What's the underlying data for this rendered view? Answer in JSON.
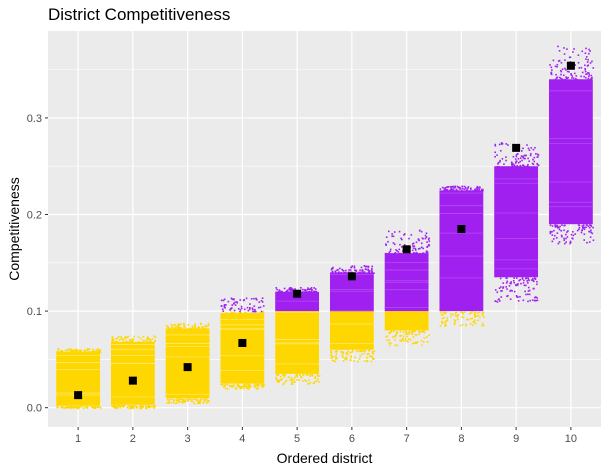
{
  "chart_data": {
    "type": "scatter",
    "title": "District Competitiveness",
    "xlabel": "Ordered district",
    "ylabel": "Competitiveness",
    "x_categories": [
      "1",
      "2",
      "3",
      "4",
      "5",
      "6",
      "7",
      "8",
      "9",
      "10"
    ],
    "ylim": [
      -0.02,
      0.39
    ],
    "y_ticks": [
      0.0,
      0.1,
      0.2,
      0.3
    ],
    "y_tick_labels": [
      "0.0",
      "0.1",
      "0.2",
      "0.3"
    ],
    "threshold": 0.1,
    "colors": {
      "below_threshold": "#FFD700",
      "above_threshold": "#A020F0",
      "marker": "#000000",
      "panel": "#EBEBEB",
      "grid": "#FFFFFF"
    },
    "grid": true,
    "legend": "none",
    "districts": [
      {
        "x": "1",
        "min": 0.0,
        "max": 0.062,
        "core_min": 0.002,
        "core_max": 0.058,
        "marker": 0.013
      },
      {
        "x": "2",
        "min": 0.0,
        "max": 0.075,
        "core_min": 0.003,
        "core_max": 0.068,
        "marker": 0.028
      },
      {
        "x": "3",
        "min": 0.005,
        "max": 0.088,
        "core_min": 0.01,
        "core_max": 0.082,
        "marker": 0.042
      },
      {
        "x": "4",
        "min": 0.02,
        "max": 0.115,
        "core_min": 0.025,
        "core_max": 0.098,
        "marker": 0.067
      },
      {
        "x": "5",
        "min": 0.025,
        "max": 0.125,
        "core_min": 0.035,
        "core_max": 0.12,
        "marker": 0.118
      },
      {
        "x": "6",
        "min": 0.048,
        "max": 0.148,
        "core_min": 0.06,
        "core_max": 0.14,
        "marker": 0.136
      },
      {
        "x": "7",
        "min": 0.065,
        "max": 0.185,
        "core_min": 0.08,
        "core_max": 0.16,
        "marker": 0.164
      },
      {
        "x": "8",
        "min": 0.085,
        "max": 0.23,
        "core_min": 0.1,
        "core_max": 0.225,
        "marker": 0.185
      },
      {
        "x": "9",
        "min": 0.11,
        "max": 0.275,
        "core_min": 0.135,
        "core_max": 0.25,
        "marker": 0.269
      },
      {
        "x": "10",
        "min": 0.17,
        "max": 0.375,
        "core_min": 0.19,
        "core_max": 0.34,
        "marker": 0.354
      }
    ]
  }
}
